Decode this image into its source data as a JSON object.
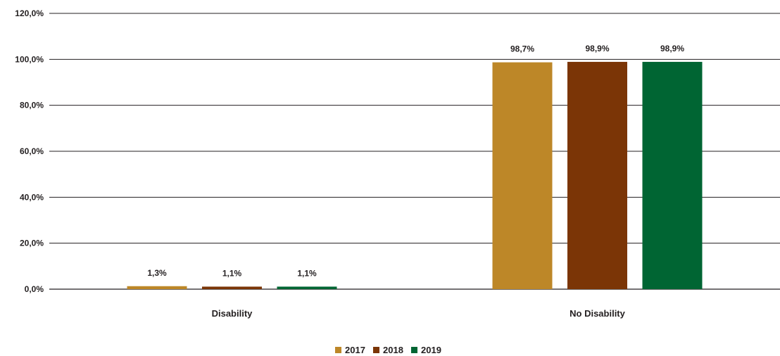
{
  "chart_data": {
    "type": "bar",
    "categories": [
      "Disability",
      "No Disability"
    ],
    "series": [
      {
        "name": "2017",
        "color": "#bd8728",
        "values": [
          1.3,
          98.7
        ],
        "labels": [
          "1,3%",
          "98,7%"
        ]
      },
      {
        "name": "2018",
        "color": "#7b3506",
        "values": [
          1.1,
          98.9
        ],
        "labels": [
          "1,1%",
          "98,9%"
        ]
      },
      {
        "name": "2019",
        "color": "#006533",
        "values": [
          1.1,
          98.9
        ],
        "labels": [
          "1,1%",
          "98,9%"
        ]
      }
    ],
    "yticks": [
      "0,0%",
      "20,0%",
      "40,0%",
      "60,0%",
      "80,0%",
      "100,0%",
      "120,0%"
    ],
    "ylim": [
      0,
      120
    ],
    "grid": true,
    "legend_position": "bottom-center",
    "title": "",
    "xlabel": "",
    "ylabel": ""
  }
}
